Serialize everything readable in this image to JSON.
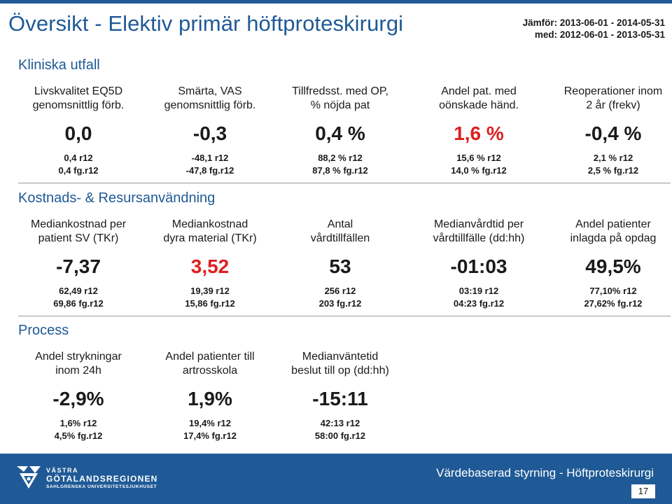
{
  "header": {
    "title": "Översikt - Elektiv primär höftproteskirurgi",
    "compare_line1": "Jämför: 2013-06-01 - 2014-05-31",
    "compare_line2": "med: 2012-06-01 - 2013-05-31"
  },
  "sections": [
    {
      "title": "Kliniska utfall",
      "metrics": [
        {
          "label": "Livskvalitet EQ5D\ngenomsnittlig förb.",
          "value": "0,0",
          "highlight": false,
          "current": "0,4 r12",
          "previous": "0,4 fg.r12"
        },
        {
          "label": "Smärta, VAS\ngenomsnittlig förb.",
          "value": "-0,3",
          "highlight": false,
          "current": "-48,1 r12",
          "previous": "-47,8 fg.r12"
        },
        {
          "label": "Tillfredsst. med OP,\n% nöjda pat",
          "value": "0,4 %",
          "highlight": false,
          "current": "88,2 % r12",
          "previous": "87,8 % fg.r12"
        },
        {
          "label": "Andel pat. med\noönskade händ.",
          "value": "1,6 %",
          "highlight": true,
          "current": "15,6 % r12",
          "previous": "14,0 % fg.r12"
        },
        {
          "label": "Reoperationer inom\n2 år (frekv)",
          "value": "-0,4 %",
          "highlight": false,
          "current": "2,1 % r12",
          "previous": "2,5 % fg.r12"
        }
      ]
    },
    {
      "title": "Kostnads- & Resursanvändning",
      "metrics": [
        {
          "label": "Mediankostnad per\npatient SV (TKr)",
          "value": "-7,37",
          "highlight": false,
          "current": "62,49 r12",
          "previous": "69,86 fg.r12"
        },
        {
          "label": "Mediankostnad\ndyra material (TKr)",
          "value": "3,52",
          "highlight": true,
          "current": "19,39 r12",
          "previous": "15,86 fg.r12"
        },
        {
          "label": "Antal\nvårdtillfällen",
          "value": "53",
          "highlight": false,
          "current": "256 r12",
          "previous": "203 fg.r12"
        },
        {
          "label": "Medianvårdtid per\nvårdtillfälle (dd:hh)",
          "value": "-01:03",
          "highlight": false,
          "current": "03:19 r12",
          "previous": "04:23 fg.r12"
        },
        {
          "label": "Andel patienter\ninlagda på opdag",
          "value": "49,5%",
          "highlight": false,
          "current": "77,10% r12",
          "previous": "27,62% fg.r12"
        }
      ]
    },
    {
      "title": "Process",
      "metrics": [
        {
          "label": "Andel strykningar\ninom 24h",
          "value": "-2,9%",
          "highlight": false,
          "current": "1,6% r12",
          "previous": "4,5% fg.r12"
        },
        {
          "label": "Andel patienter till\nartrosskola",
          "value": "1,9%",
          "highlight": false,
          "current": "19,4% r12",
          "previous": "17,4% fg.r12"
        },
        {
          "label": "Medianväntetid\nbeslut till op (dd:hh)",
          "value": "-15:11",
          "highlight": false,
          "current": "42:13 r12",
          "previous": "58:00 fg.r12"
        }
      ]
    }
  ],
  "footer": {
    "logo_line1": "VÄSTRA",
    "logo_line2": "GÖTALANDSREGIONEN",
    "logo_line3": "SAHLGRENSKA UNIVERSITETSSJUKHUSET",
    "title": "Värdebaserad styrning - Höftproteskirurgi",
    "page_number": "17"
  },
  "colors": {
    "brand_blue": "#1f5a96",
    "highlight_red": "#dd1f1f"
  },
  "icons": [
    "vgr-logo-icon"
  ]
}
